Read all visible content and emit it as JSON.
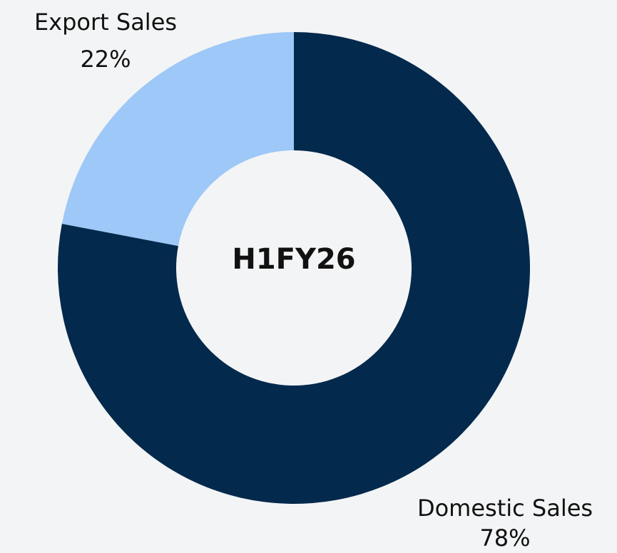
{
  "chart_data": {
    "type": "donut",
    "center_label": "H1FY26",
    "categories": [
      "Domestic Sales",
      "Export Sales"
    ],
    "values": [
      78,
      22
    ],
    "value_labels": [
      "78%",
      "22%"
    ],
    "colors": [
      "#03294d",
      "#9dc8f7"
    ]
  }
}
